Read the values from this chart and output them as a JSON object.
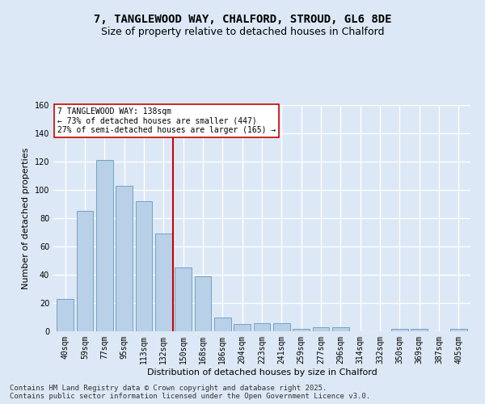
{
  "title1": "7, TANGLEWOOD WAY, CHALFORD, STROUD, GL6 8DE",
  "title2": "Size of property relative to detached houses in Chalford",
  "xlabel": "Distribution of detached houses by size in Chalford",
  "ylabel": "Number of detached properties",
  "categories": [
    "40sqm",
    "59sqm",
    "77sqm",
    "95sqm",
    "113sqm",
    "132sqm",
    "150sqm",
    "168sqm",
    "186sqm",
    "204sqm",
    "223sqm",
    "241sqm",
    "259sqm",
    "277sqm",
    "296sqm",
    "314sqm",
    "332sqm",
    "350sqm",
    "369sqm",
    "387sqm",
    "405sqm"
  ],
  "values": [
    23,
    85,
    121,
    103,
    92,
    69,
    45,
    39,
    10,
    5,
    6,
    6,
    2,
    3,
    3,
    0,
    0,
    2,
    2,
    0,
    2
  ],
  "bar_color": "#b8d0e8",
  "bar_edge_color": "#6699bb",
  "vline_x_index": 5.5,
  "vline_color": "#cc0000",
  "annotation_text": "7 TANGLEWOOD WAY: 138sqm\n← 73% of detached houses are smaller (447)\n27% of semi-detached houses are larger (165) →",
  "annotation_box_color": "#ffffff",
  "annotation_box_edge_color": "#cc0000",
  "ylim": [
    0,
    160
  ],
  "yticks": [
    0,
    20,
    40,
    60,
    80,
    100,
    120,
    140,
    160
  ],
  "footer": "Contains HM Land Registry data © Crown copyright and database right 2025.\nContains public sector information licensed under the Open Government Licence v3.0.",
  "bg_color": "#dce8f5",
  "plot_bg_color": "#dce8f5",
  "grid_color": "#ffffff",
  "title_fontsize": 10,
  "subtitle_fontsize": 9,
  "tick_fontsize": 7,
  "footer_fontsize": 6.5,
  "xlabel_fontsize": 8,
  "ylabel_fontsize": 8
}
